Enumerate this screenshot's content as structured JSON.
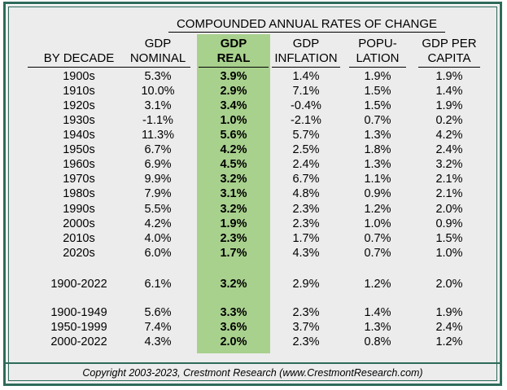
{
  "table": {
    "super_header": "COMPOUNDED ANNUAL RATES OF CHANGE",
    "columns": [
      {
        "key": "decade",
        "line1": "",
        "line2": "BY DECADE",
        "bold": false
      },
      {
        "key": "nominal",
        "line1": "GDP",
        "line2": "NOMINAL",
        "bold": false
      },
      {
        "key": "real",
        "line1": "GDP",
        "line2": "REAL",
        "bold": true
      },
      {
        "key": "inflation",
        "line1": "GDP",
        "line2": "INFLATION",
        "bold": false
      },
      {
        "key": "population",
        "line1": "POPU-",
        "line2": "LATION",
        "bold": false
      },
      {
        "key": "per_capita",
        "line1": "GDP PER",
        "line2": "CAPITA",
        "bold": false
      }
    ],
    "rows": [
      [
        "1900s",
        "5.3%",
        "3.9%",
        "1.4%",
        "1.9%",
        "1.9%"
      ],
      [
        "1910s",
        "10.0%",
        "2.9%",
        "7.1%",
        "1.5%",
        "1.4%"
      ],
      [
        "1920s",
        "3.1%",
        "3.4%",
        "-0.4%",
        "1.5%",
        "1.9%"
      ],
      [
        "1930s",
        "-1.1%",
        "1.0%",
        "-2.1%",
        "0.7%",
        "0.2%"
      ],
      [
        "1940s",
        "11.3%",
        "5.6%",
        "5.7%",
        "1.3%",
        "4.2%"
      ],
      [
        "1950s",
        "6.7%",
        "4.2%",
        "2.5%",
        "1.8%",
        "2.4%"
      ],
      [
        "1960s",
        "6.9%",
        "4.5%",
        "2.4%",
        "1.3%",
        "3.2%"
      ],
      [
        "1970s",
        "9.9%",
        "3.2%",
        "6.7%",
        "1.1%",
        "2.1%"
      ],
      [
        "1980s",
        "7.9%",
        "3.1%",
        "4.8%",
        "0.9%",
        "2.1%"
      ],
      [
        "1990s",
        "5.5%",
        "3.2%",
        "2.3%",
        "1.2%",
        "2.0%"
      ],
      [
        "2000s",
        "4.2%",
        "1.9%",
        "2.3%",
        "1.0%",
        "0.9%"
      ],
      [
        "2010s",
        "4.0%",
        "2.3%",
        "1.7%",
        "0.7%",
        "1.5%"
      ],
      [
        "2020s",
        "6.0%",
        "1.7%",
        "4.3%",
        "0.7%",
        "1.0%"
      ],
      [
        "1900-2022",
        "6.1%",
        "3.2%",
        "2.9%",
        "1.2%",
        "2.0%"
      ],
      [
        "1900-1949",
        "5.6%",
        "3.3%",
        "2.3%",
        "1.4%",
        "1.9%"
      ],
      [
        "1950-1999",
        "7.4%",
        "3.6%",
        "3.7%",
        "1.3%",
        "2.4%"
      ],
      [
        "2000-2022",
        "4.3%",
        "2.0%",
        "2.3%",
        "0.8%",
        "1.2%"
      ]
    ]
  },
  "footer": "Copyright 2003-2023, Crestmont Research (www.CrestmontResearch.com)",
  "colors": {
    "highlight": "#a9d18e",
    "border": "#2e6a5a",
    "background": "#ececec"
  }
}
